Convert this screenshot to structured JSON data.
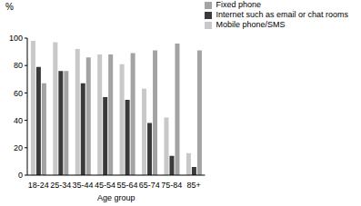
{
  "chart_data": {
    "type": "bar",
    "y_label": "%",
    "x_label": "Age group",
    "categories": [
      "18-24",
      "25-34",
      "35-44",
      "45-54",
      "55-64",
      "65-74",
      "75-84",
      "85+"
    ],
    "series": [
      {
        "name": "Mobile phone/SMS",
        "color": "#c8c8c8",
        "values": [
          98,
          97,
          92,
          88,
          81,
          63,
          42,
          16
        ]
      },
      {
        "name": "Internet such as email or chat rooms",
        "color": "#3a3a3a",
        "values": [
          79,
          76,
          67,
          57,
          55,
          38,
          14,
          6
        ]
      },
      {
        "name": "Fixed phone",
        "color": "#a3a3a3",
        "values": [
          67,
          76,
          86,
          88,
          89,
          91,
          96,
          91
        ]
      }
    ],
    "ylim": [
      0,
      100
    ],
    "yticks": [
      0,
      20,
      40,
      60,
      80,
      100
    ],
    "grid": false,
    "legend": "top-right"
  }
}
